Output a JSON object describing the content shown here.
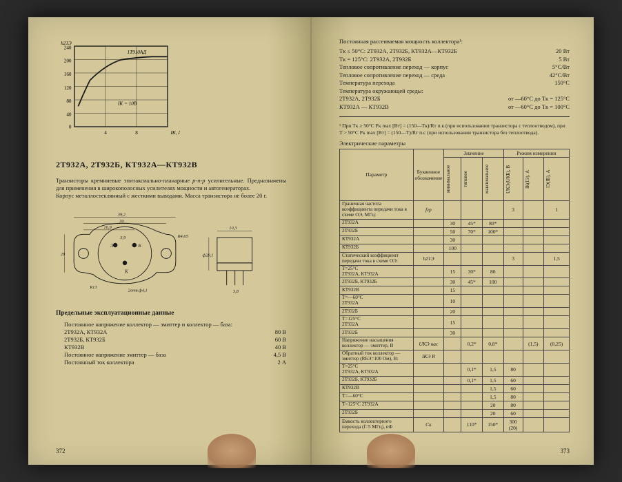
{
  "left_page": {
    "chart": {
      "type": "line",
      "ylabel": "h21Э",
      "xlabel": "IК, А",
      "series_label": "1Т910АД",
      "inner_label": "IК = 10В",
      "ylim": [
        0,
        240
      ],
      "ytick_step": 40,
      "xlim": [
        0,
        12
      ],
      "xtick_step": 4,
      "x": [
        0.5,
        1,
        2,
        4,
        6,
        8,
        10,
        12
      ],
      "y": [
        60,
        100,
        150,
        190,
        205,
        208,
        210,
        210
      ],
      "line_color": "#1a1a1a",
      "line_width": 1.5,
      "grid_color": "#1a1a1a",
      "background_color": "#d4c89a"
    },
    "heading": "2Т932А, 2Т932Б, КТ932А—КТ932В",
    "description": "Транзисторы кремниевые эпитаксиально-планарные p-n-p усилительные. Предназначены для применения в широкополосных усилителях мощности и автогенераторах.\nКорпус металлостеклянный с жесткими выводами. Масса транзистора не более 20 г.",
    "diagram": {
      "type": "mechanical-drawing",
      "dims": {
        "width_outer": "39,2",
        "width_inner": "30",
        "center_offset": "16,9",
        "pin_spacing": "3,9",
        "height": "28",
        "radius_small": "R4,65",
        "radius_large": "R13",
        "hole": "2отв.ф4,1",
        "side_width": "10,3",
        "side_diam": "ф20,1",
        "side_height": "3,8",
        "pin_labels": [
          "Э",
          "К",
          "Б"
        ]
      },
      "line_color": "#1a1a1a"
    },
    "limits_heading": "Предельные эксплуатационные данные",
    "limits": [
      {
        "label": "Постоянное напряжение коллектор — эмиттер и коллектор — база:",
        "value": ""
      },
      {
        "label": "2Т932А, КТ932А",
        "value": "80 В"
      },
      {
        "label": "2Т932Б, КТ932Б",
        "value": "60 В"
      },
      {
        "label": "КТ932В",
        "value": "40 В"
      },
      {
        "label": "Постоянное напряжение эмиттер — база",
        "value": "4,5 В"
      },
      {
        "label": "Постоянный ток коллектора",
        "value": "2 А"
      }
    ],
    "page_num": "372"
  },
  "right_page": {
    "top_heading": "Постоянная рассеиваемая мощность коллектора¹:",
    "top_specs": [
      {
        "label": "Tк ≤ 50°С: 2Т932А, 2Т932Б, КТ932А—КТ932Б",
        "value": "20 Вт"
      },
      {
        "label": "Tк = 125°С: 2Т932А, 2Т932Б",
        "value": "5 Вт"
      },
      {
        "label": "Тепловое сопротивление переход — корпус",
        "value": "5°С/Вт"
      },
      {
        "label": "Тепловое сопротивление переход — среда",
        "value": "42°С/Вт"
      },
      {
        "label": "Температура перехода",
        "value": "150°С"
      },
      {
        "label": "Температура окружающей среды:",
        "value": ""
      },
      {
        "label": "2Т932А, 2Т932Б",
        "value": "от —60°С до Tк = 125°С"
      },
      {
        "label": "КТ932А — КТ932В",
        "value": "от —60°С до Tк = 100°С"
      }
    ],
    "footnote": "¹ При Tк ≥ 50°С Pк max [Вт] = (150—Tк)/Rт п.к (при использовании транзистора с теплоотводом), при T > 50°С Pк max [Вт] = (150—T)/Rт п.с (при использовании транзистора без теплоотвода).",
    "table_title": "Электрические параметры",
    "table": {
      "type": "table",
      "header_groups": [
        "Значение",
        "Режим измерения"
      ],
      "columns": [
        "Параметр",
        "Буквенное обозначение",
        "минимальное",
        "типовое",
        "максимальное",
        "UКЭ(UКБ), В",
        "IК(IЭ), А",
        "IЭ(IБ), А"
      ],
      "rows": [
        {
          "name": "Граничная частота коэффициента передачи тока в схеме ОЭ, МГц:",
          "sym": "fгр",
          "cells": [
            "",
            "",
            "",
            "3",
            "",
            "1"
          ]
        },
        {
          "name": "2Т932А",
          "sym": "",
          "cells": [
            "30",
            "45*",
            "80*",
            "",
            "",
            ""
          ]
        },
        {
          "name": "2Т932Б",
          "sym": "",
          "cells": [
            "50",
            "70*",
            "100*",
            "",
            "",
            ""
          ]
        },
        {
          "name": "КТ932А",
          "sym": "",
          "cells": [
            "30",
            "",
            "",
            "",
            "",
            ""
          ]
        },
        {
          "name": "КТ932Б",
          "sym": "",
          "cells": [
            "100",
            "",
            "",
            "",
            "",
            ""
          ]
        },
        {
          "name": "Статический коэффициент передачи тока в схеме ОЭ:",
          "sym": "h21Э",
          "cells": [
            "",
            "",
            "",
            "3",
            "",
            "1,5"
          ]
        },
        {
          "name": "T=25°С\n2Т932А, КТ932А",
          "sym": "",
          "cells": [
            "15",
            "30*",
            "80",
            "",
            "",
            ""
          ]
        },
        {
          "name": "2Т932Б, КТ932Б",
          "sym": "",
          "cells": [
            "30",
            "45*",
            "100",
            "",
            "",
            ""
          ]
        },
        {
          "name": "КТ932В",
          "sym": "",
          "cells": [
            "15",
            "",
            "",
            "",
            "",
            ""
          ]
        },
        {
          "name": "T=—60°С\n2Т932А",
          "sym": "",
          "cells": [
            "10",
            "",
            "",
            "",
            "",
            ""
          ]
        },
        {
          "name": "2Т932Б",
          "sym": "",
          "cells": [
            "20",
            "",
            "",
            "",
            "",
            ""
          ]
        },
        {
          "name": "T=125°С\n2Т932А",
          "sym": "",
          "cells": [
            "15",
            "",
            "",
            "",
            "",
            ""
          ]
        },
        {
          "name": "2Т932Б",
          "sym": "",
          "cells": [
            "30",
            "",
            "",
            "",
            "",
            ""
          ]
        },
        {
          "name": "Напряжение насыщения коллектор — эмиттер, В",
          "sym": "UКЭ нас",
          "cells": [
            "",
            "0,2*",
            "0,8*",
            "",
            "(1,5)",
            "(0,25)"
          ]
        },
        {
          "name": "Обратный ток коллектор — эмиттер (RБЭ=100 Ом), В:",
          "sym": "IКЭ R",
          "cells": [
            "",
            "",
            "",
            "",
            "",
            ""
          ]
        },
        {
          "name": "T=25°С\n2Т932А, КТ932А",
          "sym": "",
          "cells": [
            "",
            "0,1*",
            "1,5",
            "80",
            "",
            ""
          ]
        },
        {
          "name": "2Т932Б, КТ932Б",
          "sym": "",
          "cells": [
            "",
            "0,1*",
            "1,5",
            "60",
            "",
            ""
          ]
        },
        {
          "name": "КТ932В",
          "sym": "",
          "cells": [
            "",
            "",
            "1,5",
            "60",
            "",
            ""
          ]
        },
        {
          "name": "T=—60°С",
          "sym": "",
          "cells": [
            "",
            "",
            "1,5",
            "80",
            "",
            ""
          ]
        },
        {
          "name": "T=125°С 2Т932А",
          "sym": "",
          "cells": [
            "",
            "",
            "20",
            "80",
            "",
            ""
          ]
        },
        {
          "name": "2Т932Б",
          "sym": "",
          "cells": [
            "",
            "",
            "20",
            "60",
            "",
            ""
          ]
        },
        {
          "name": "Емкость коллекторного перехода (f=5 МГц), пФ",
          "sym": "Cк",
          "cells": [
            "",
            "110*",
            "150*",
            "300\n(20)",
            "",
            ""
          ]
        }
      ],
      "border_color": "#444444",
      "background_color": "#d4c89a",
      "font_size": 7.5
    },
    "page_num": "373"
  }
}
